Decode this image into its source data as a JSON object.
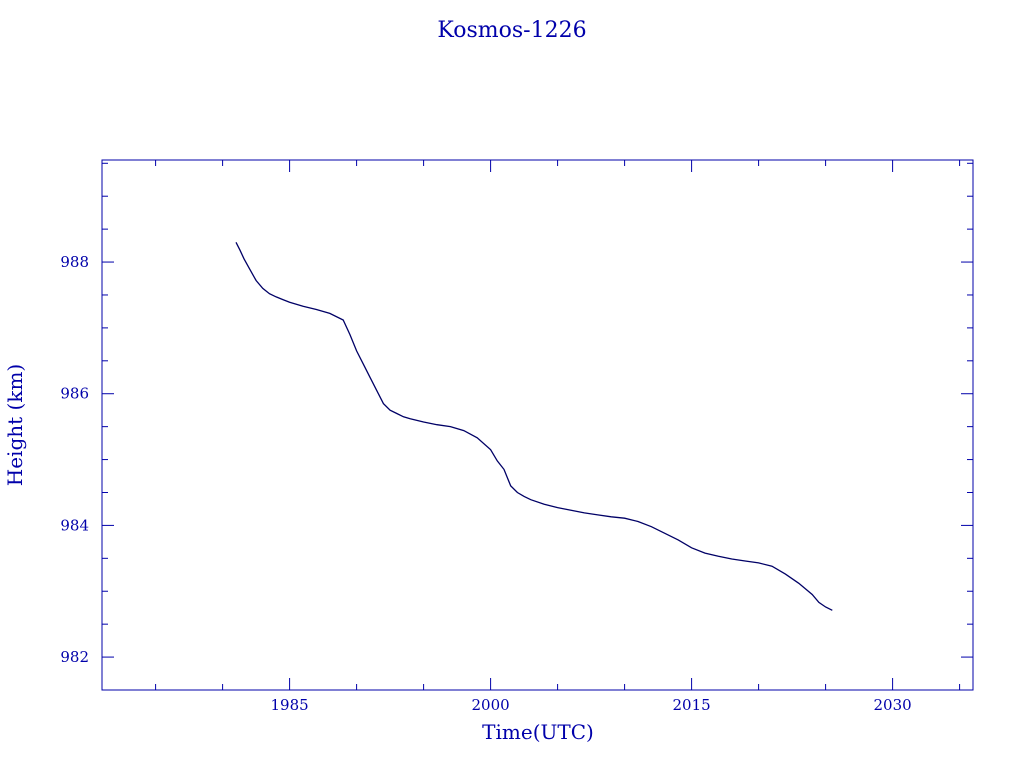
{
  "chart_data": {
    "type": "line",
    "title": "Kosmos-1226",
    "xlabel": "Time(UTC)",
    "ylabel": "Height (km)",
    "xlim": [
      1971.0,
      2036.0
    ],
    "ylim": [
      981.5,
      989.55
    ],
    "x_ticks": [
      1985,
      2000,
      2015,
      2030
    ],
    "y_ticks": [
      982,
      984,
      986,
      988
    ],
    "grid": false,
    "legend": "none",
    "colors": {
      "axis": "#0000aa",
      "series": "#000066"
    },
    "series": [
      {
        "x": [
          1981.0,
          1981.3,
          1981.6,
          1982.0,
          1982.5,
          1983.0,
          1983.5,
          1984.0,
          1984.5,
          1985.0,
          1986.0,
          1987.0,
          1988.0,
          1989.0,
          1989.5,
          1990.0,
          1990.5,
          1991.0,
          1991.5,
          1992.0,
          1992.5,
          1993.0,
          1993.5,
          1994.0,
          1995.0,
          1996.0,
          1997.0,
          1998.0,
          1999.0,
          2000.0,
          2000.5,
          2001.0,
          2001.5,
          2002.0,
          2002.5,
          2003.0,
          2004.0,
          2005.0,
          2006.0,
          2007.0,
          2008.0,
          2009.0,
          2010.0,
          2011.0,
          2012.0,
          2013.0,
          2014.0,
          2015.0,
          2016.0,
          2017.0,
          2018.0,
          2019.0,
          2020.0,
          2021.0,
          2022.0,
          2023.0,
          2024.0,
          2024.5,
          2025.0,
          2025.5
        ],
        "y": [
          988.3,
          988.18,
          988.05,
          987.9,
          987.72,
          987.6,
          987.52,
          987.47,
          987.43,
          987.39,
          987.33,
          987.28,
          987.22,
          987.12,
          986.9,
          986.65,
          986.45,
          986.25,
          986.05,
          985.85,
          985.75,
          985.7,
          985.65,
          985.62,
          985.57,
          985.53,
          985.5,
          985.44,
          985.33,
          985.15,
          984.98,
          984.85,
          984.6,
          984.5,
          984.44,
          984.39,
          984.32,
          984.27,
          984.23,
          984.19,
          984.16,
          984.13,
          984.11,
          984.06,
          983.98,
          983.88,
          983.78,
          983.66,
          983.58,
          983.53,
          983.49,
          983.46,
          983.43,
          983.38,
          983.26,
          983.12,
          982.95,
          982.83,
          982.76,
          982.71
        ]
      }
    ]
  }
}
